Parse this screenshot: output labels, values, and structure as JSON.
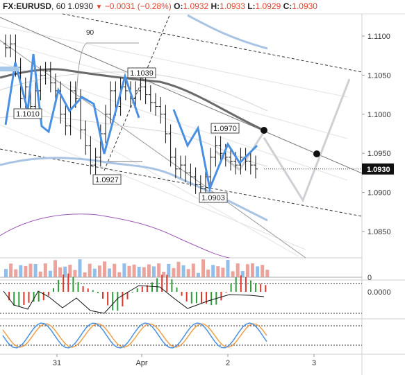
{
  "header": {
    "symbol": "FX:EURUSD",
    "interval": "60",
    "last": "1.0930",
    "change": "−0.0031 (−0.28%)",
    "open_label": "O:",
    "open": "1.0932",
    "high_label": "H:",
    "high": "1.0933",
    "low_label": "L:",
    "low": "1.0929",
    "close_label": "C:",
    "close": "1.0930",
    "direction": "down"
  },
  "chart_data": {
    "type": "candlestick",
    "price_axis": {
      "ticks": [
        "1.1100",
        "1.1050",
        "1.1000",
        "1.0950",
        "1.0900",
        "1.0850"
      ],
      "tick_values": [
        1.11,
        1.105,
        1.1,
        1.095,
        1.09,
        1.085
      ],
      "range": [
        1.0815,
        1.1135
      ],
      "last_price_label": "1.0930"
    },
    "time_axis": {
      "ticks": [
        "31",
        "Apr",
        "2",
        "3"
      ]
    },
    "annotations": {
      "angle_label": "90",
      "price_labels": [
        "1.1039",
        "1.1010",
        "1.0970",
        "1.0927",
        "1.0903"
      ]
    },
    "candles_close": [
      1.1085,
      1.109,
      1.106,
      1.102,
      1.1035,
      1.101,
      1.103,
      1.105,
      1.1055,
      1.104,
      1.103,
      1.1,
      1.0985,
      1.103,
      1.102,
      1.098,
      1.096,
      1.0935,
      1.0945,
      1.0975,
      1.1,
      1.103,
      1.101,
      1.1035,
      1.103,
      1.102,
      1.103,
      1.1035,
      1.1025,
      1.1015,
      1.101,
      1.1,
      1.0975,
      1.0945,
      1.093,
      1.0935,
      1.0925,
      1.092,
      1.091,
      1.0905,
      1.092,
      1.0945,
      1.096,
      1.095,
      1.0945,
      1.094,
      1.0935,
      1.0945,
      1.094,
      1.0935,
      1.093
    ],
    "forecast_path": [
      1.0965,
      1.089,
      1.1045
    ],
    "oscillator_label": "0.0000",
    "volume_label": "0",
    "colors": {
      "wave": "#4a90e2",
      "ma_dark": "#6a6a6a",
      "band_blue": "#a8c4e2",
      "purple": "#9b59b6",
      "macd_up": "#2e9c3a",
      "macd_down": "#d9382a",
      "stoch_orange": "#f0a04b",
      "stoch_blue": "#4a90e2",
      "forecast": "#cfcfd4",
      "last_badge": "#111111"
    }
  }
}
